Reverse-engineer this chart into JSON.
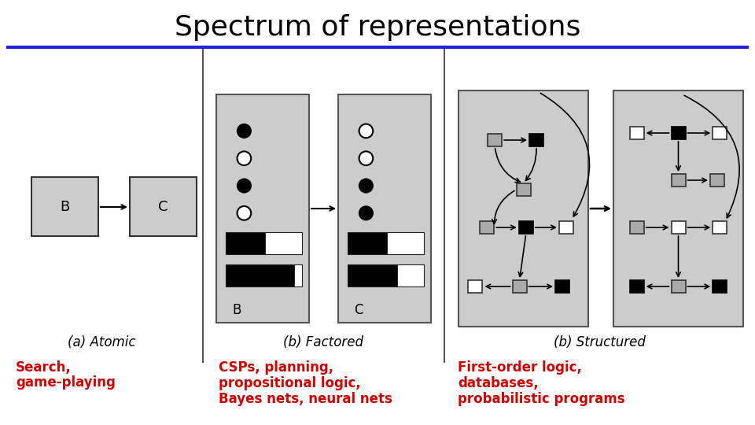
{
  "title": "Spectrum of representations",
  "title_fontsize": 26,
  "title_color": "#000000",
  "background_color": "#ffffff",
  "divider_line_color": "#2222dd",
  "col_labels": [
    "(a) Atomic",
    "(b) Factored",
    "(b) Structured"
  ],
  "col_label_fontsize": 12,
  "red_labels": [
    [
      "Search,",
      "game-playing"
    ],
    [
      "CSPs, planning,",
      "propositional logic,",
      "Bayes nets, neural nets"
    ],
    [
      "First-order logic,",
      "databases,",
      "probabilistic programs"
    ]
  ],
  "red_fontsize": 12,
  "red_color": "#cc0000",
  "box_bg": "#cccccc",
  "box_border": "#333333"
}
